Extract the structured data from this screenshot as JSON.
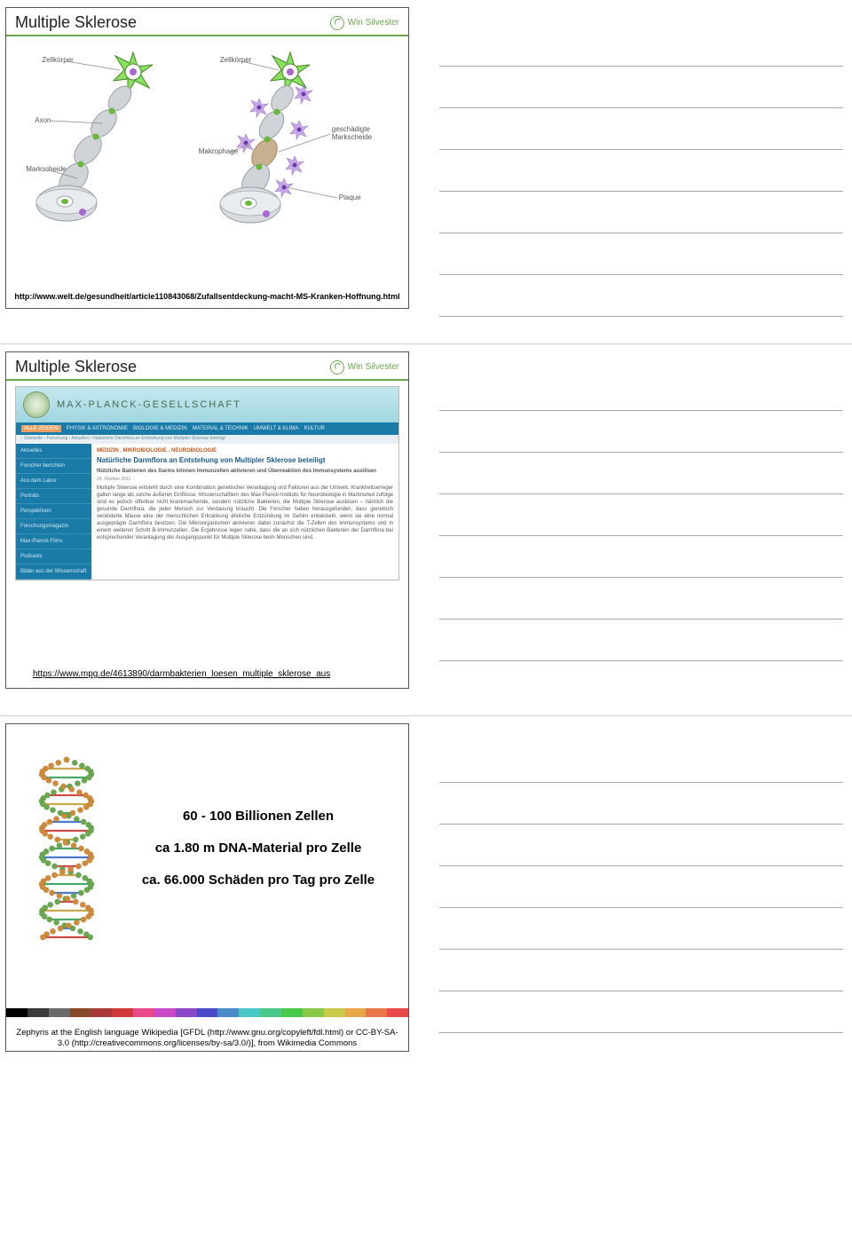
{
  "common": {
    "logo_text": "Win Silvester",
    "logo_color": "#6aa84f",
    "rule_color": "#aaaaaa",
    "note_lines_per_row": 7
  },
  "slide1": {
    "title": "Multiple Sklerose",
    "labels": {
      "zellkoerper_left": "Zellkörper",
      "zellkoerper_right": "Zellkörper",
      "axon": "Axon",
      "markscheide": "Markscheide",
      "makrophage": "Makrophage",
      "geschaedigte": "geschädigte Markscheide",
      "plaque": "Plaque"
    },
    "footer_url": "http://www.welt.de/gesundheit/article110843068/Zufallsentdeckung-macht-MS-Kranken-Hoffnung.html",
    "neuron_colors": {
      "soma_fill": "#8de060",
      "soma_stroke": "#3a8a20",
      "nucleus": "#a86ad0",
      "axon_fill": "#d0d4d8",
      "axon_stroke": "#9aa0a6",
      "node": "#6ab83a",
      "macrophage_fill": "#c8a8e8",
      "macrophage_dot": "#6a3aa8",
      "plaque": "#c8b090",
      "label_line": "#888888"
    }
  },
  "slide2": {
    "title": "Multiple Sklerose",
    "banner_org": "MAX-PLANCK-GESELLSCHAFT",
    "nav": {
      "alle": "ALLE ZEIGEN",
      "items": [
        "PHYSIK & ASTRONOMIE",
        "BIOLOGIE & MEDIZIN",
        "MATERIAL & TECHNIK",
        "UMWELT & KLIMA",
        "KULTUR"
      ]
    },
    "breadcrumb": "› Startseite › Forschung › Aktuelles › Natürliche Darmflora an Entstehung von Multipler Sklerose beteiligt",
    "sidebar": [
      "Aktuelles",
      "Forscher berichten",
      "Aus dem Labor",
      "Porträts",
      "Perspektiven",
      "Forschungsmagazin",
      "Max-Planck-Films",
      "Podcasts",
      "Bilder aus der Wissenschaft"
    ],
    "category": "MEDIZIN . MIKROBIOLOGIE . NEUROBIOLOGIE",
    "headline": "Natürliche Darmflora an Entstehung von Multipler Sklerose beteiligt",
    "subhead": "Nützliche Bakterien des Darms können Immunzellen aktivieren und Überreaktion des Immunsystems auslösen",
    "date": "26. Oktober 2011",
    "body_text": "Multiple Sklerose entsteht durch eine Kombination genetischer Veranlagung und Faktoren aus der Umwelt. Krankheitserreger galten lange als solche äußeren Einflüsse. Wissenschaftlern des Max-Planck-Instituts für Neurobiologie in Martinsried zufolge sind es jedoch offenbar nicht krankmachende, sondern nützliche Bakterien, die Multiple Sklerose auslösen – nämlich die gesunde Darmflora, die jeder Mensch zur Verdauung braucht. Die Forscher haben herausgefunden, dass genetisch veränderte Mäuse eine der menschlichen Erkrankung ähnliche Entzündung im Gehirn entwickeln, wenn sie eine normal ausgeprägte Darmflora besitzen. Die Mikroorganismen aktivieren dabei zunächst die T-Zellen des Immunsystems und in einem weiteren Schritt B-Immunzellen. Die Ergebnisse legen nahe, dass die an sich nützlichen Bakterien der Darmflora bei entsprechender Veranlagung der Ausgangspunkt für Multiple Sklerose beim Menschen sind.",
    "footer_url": "https://www.mpg.de/4613890/darmbakterien_loesen_multiple_sklerose_aus"
  },
  "slide3": {
    "facts": {
      "line1": "60 - 100 Billionen Zellen",
      "line2": "ca 1.80 m DNA-Material pro Zelle",
      "line3": "ca. 66.000 Schäden pro Tag pro Zelle"
    },
    "attribution": "Zephyris at the English language Wikipedia [GFDL (http://www.gnu.org/copyleft/fdl.html) or CC-BY-SA-3.0 (http://creativecommons.org/licenses/by-sa/3.0/)], from Wikimedia Commons",
    "rainbow_colors": [
      "#000000",
      "#3a3a3a",
      "#6a6a6a",
      "#8a4a2a",
      "#a83a3a",
      "#d03a3a",
      "#e84a8a",
      "#c84ac8",
      "#8a4ac8",
      "#4a4ac8",
      "#4a8ac8",
      "#4ac8c8",
      "#4ac88a",
      "#4ac84a",
      "#8ac84a",
      "#c8c84a",
      "#e8a84a",
      "#e8784a",
      "#e84a4a"
    ],
    "dna_colors": {
      "backbone1": "#6aa84f",
      "backbone2": "#d08a3a",
      "base_a": "#d04a4a",
      "base_b": "#4a7ad0",
      "base_c": "#4aa86a",
      "base_d": "#c8a84a"
    }
  }
}
